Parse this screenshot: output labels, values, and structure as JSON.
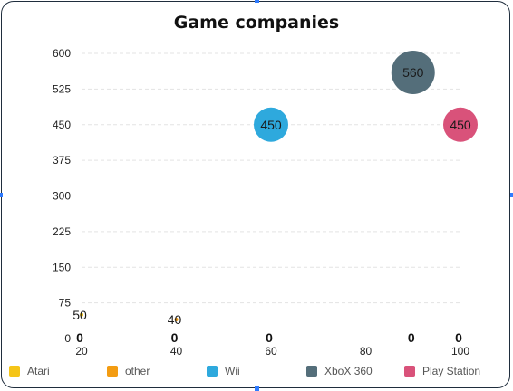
{
  "chart_data": {
    "type": "scatter",
    "title": "Game companies",
    "xlabel": "",
    "ylabel": "",
    "xlim": [
      20,
      100
    ],
    "ylim": [
      0,
      600
    ],
    "x_ticks": [
      "20",
      "40",
      "60",
      "80",
      "100"
    ],
    "y_ticks": [
      "0",
      "75",
      "150",
      "225",
      "300",
      "375",
      "450",
      "525",
      "600"
    ],
    "grid": true,
    "legend_position": "bottom",
    "series": [
      {
        "name": "Atari",
        "color": "#f5c518",
        "points": [
          {
            "x": 20,
            "y": 50,
            "label": "50"
          },
          {
            "x": 20,
            "y": 0,
            "label": "0"
          }
        ]
      },
      {
        "name": "other",
        "color": "#f39c12",
        "points": [
          {
            "x": 40,
            "y": 40,
            "label": "40"
          },
          {
            "x": 40,
            "y": 0,
            "label": "0"
          }
        ]
      },
      {
        "name": "Wii",
        "color": "#2ea9dd",
        "points": [
          {
            "x": 60,
            "y": 450,
            "label": "450"
          },
          {
            "x": 60,
            "y": 0,
            "label": "0"
          }
        ]
      },
      {
        "name": "XboX 360",
        "color": "#546e7a",
        "points": [
          {
            "x": 90,
            "y": 560,
            "label": "560"
          },
          {
            "x": 90,
            "y": 0,
            "label": "0"
          }
        ]
      },
      {
        "name": "Play Station",
        "color": "#d9527a",
        "points": [
          {
            "x": 100,
            "y": 450,
            "label": "450"
          },
          {
            "x": 100,
            "y": 0,
            "label": "0"
          }
        ]
      }
    ]
  }
}
